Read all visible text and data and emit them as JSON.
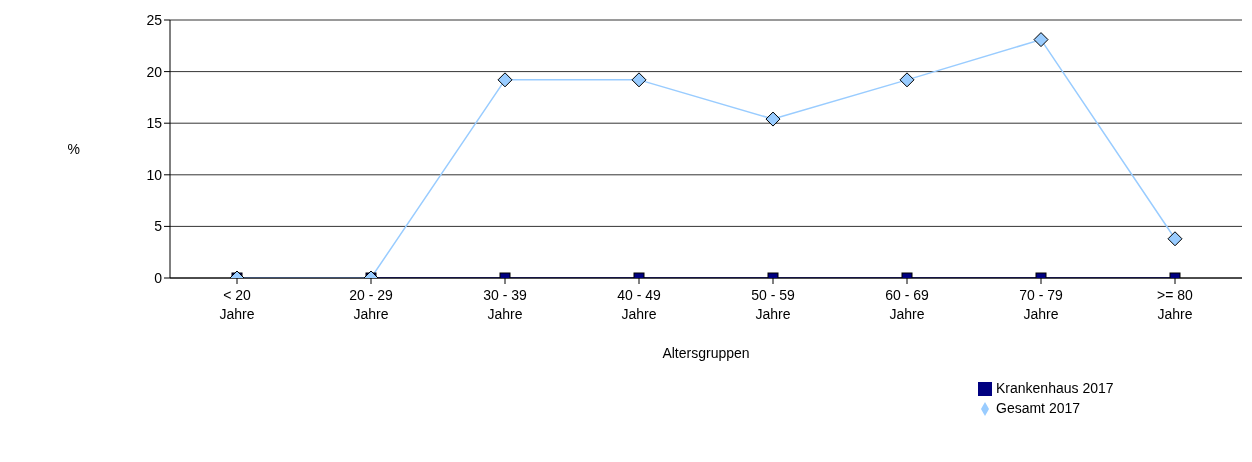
{
  "chart_data": {
    "type": "line",
    "xlabel": "Altersgruppen",
    "ylabel": "%",
    "categories": [
      "< 20 Jahre",
      "20 - 29 Jahre",
      "30 - 39 Jahre",
      "40 - 49 Jahre",
      "50 - 59 Jahre",
      "60 - 69 Jahre",
      "70 - 79 Jahre",
      ">= 80 Jahre"
    ],
    "series": [
      {
        "name": "Krankenhaus 2017",
        "color": "#000080",
        "marker": "square",
        "values": [
          0,
          0,
          0,
          0,
          0,
          0,
          0,
          0
        ]
      },
      {
        "name": "Gesamt 2017",
        "color": "#99ccff",
        "marker": "diamond",
        "values": [
          0,
          0,
          19.2,
          19.2,
          15.4,
          19.2,
          23.1,
          3.8
        ]
      }
    ],
    "ylim": [
      0,
      25
    ],
    "yticks": [
      0,
      5,
      10,
      15,
      20,
      25
    ],
    "grid": "y",
    "legend": "bottom right"
  }
}
